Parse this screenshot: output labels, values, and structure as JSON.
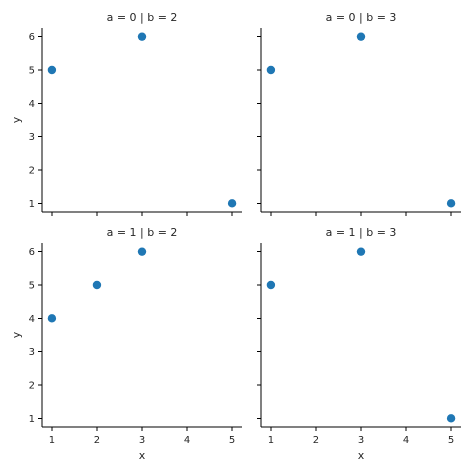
{
  "chart_data": {
    "type": "scatter",
    "layout": "facet-grid",
    "row_variable": "a",
    "col_variable": "b",
    "xlabel": "x",
    "ylabel": "y",
    "x_ticks": [
      1,
      2,
      3,
      4,
      5
    ],
    "y_ticks": [
      1,
      2,
      3,
      4,
      5,
      6
    ],
    "xlim": [
      0.78,
      5.22
    ],
    "ylim": [
      0.74,
      6.26
    ],
    "marker_color": "#1f77b4",
    "panels": [
      {
        "title": "a = 0 | b = 2",
        "points": [
          {
            "x": 1,
            "y": 5
          },
          {
            "x": 3,
            "y": 6
          },
          {
            "x": 5,
            "y": 1
          }
        ]
      },
      {
        "title": "a = 0 | b = 3",
        "points": [
          {
            "x": 1,
            "y": 5
          },
          {
            "x": 3,
            "y": 6
          },
          {
            "x": 5,
            "y": 1
          }
        ]
      },
      {
        "title": "a = 1 | b = 2",
        "points": [
          {
            "x": 1,
            "y": 4
          },
          {
            "x": 2,
            "y": 5
          },
          {
            "x": 3,
            "y": 6
          }
        ]
      },
      {
        "title": "a = 1 | b = 3",
        "points": [
          {
            "x": 1,
            "y": 5
          },
          {
            "x": 3,
            "y": 6
          },
          {
            "x": 5,
            "y": 1
          }
        ]
      }
    ]
  }
}
